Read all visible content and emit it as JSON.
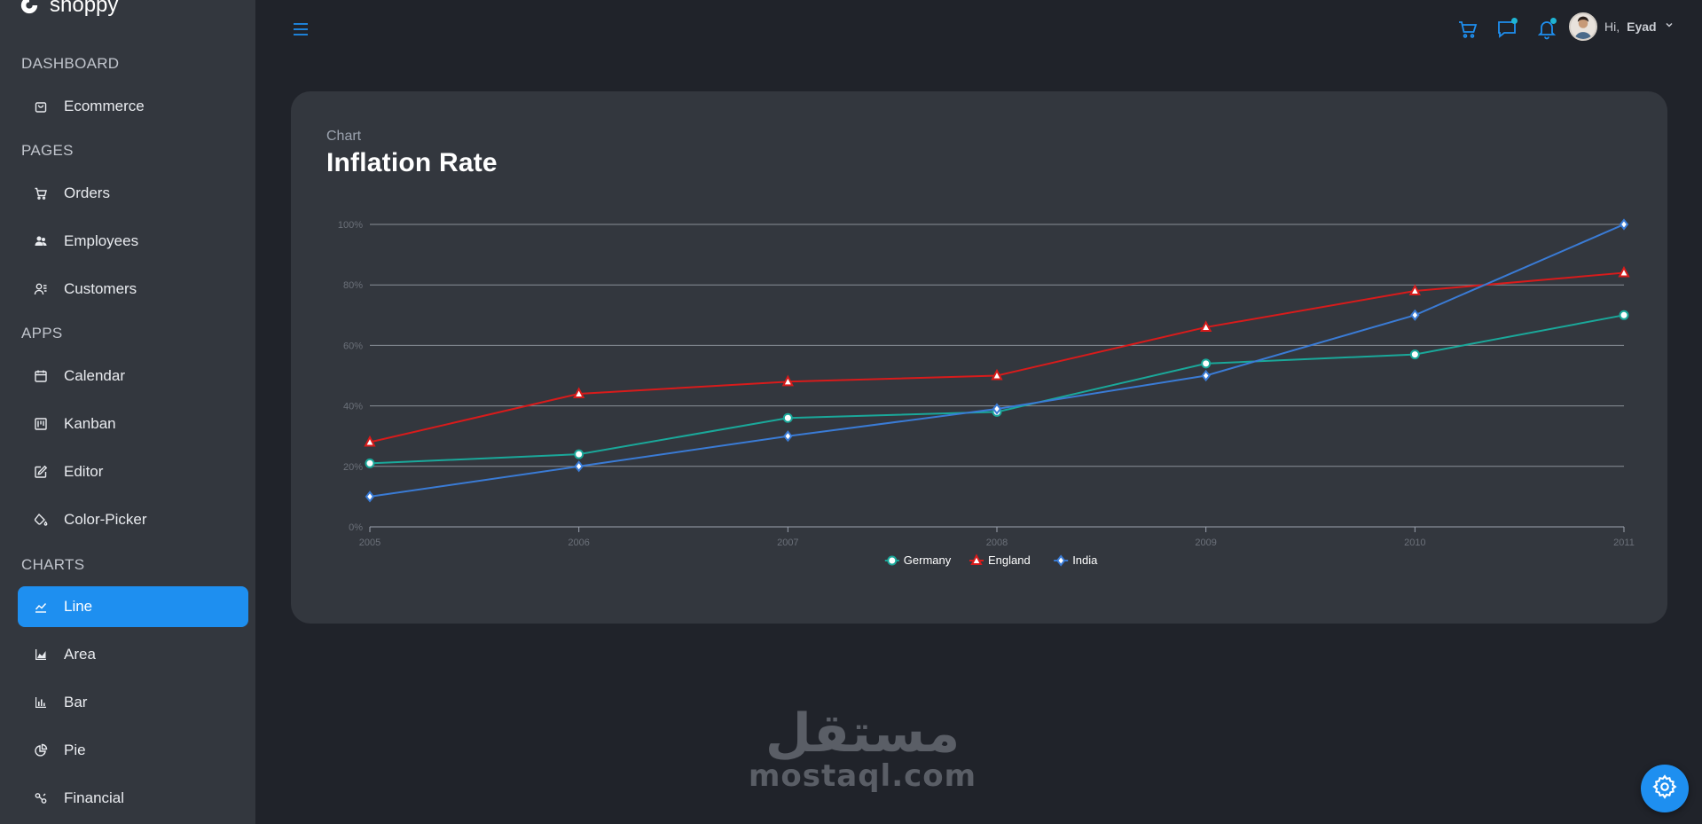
{
  "app": {
    "name": "shoppy"
  },
  "sidebar": {
    "sections": [
      {
        "title": "DASHBOARD",
        "items": [
          {
            "label": "Ecommerce",
            "icon": "shopping-bag-icon"
          }
        ]
      },
      {
        "title": "PAGES",
        "items": [
          {
            "label": "Orders",
            "icon": "cart-icon"
          },
          {
            "label": "Employees",
            "icon": "employees-icon"
          },
          {
            "label": "Customers",
            "icon": "customers-icon"
          }
        ]
      },
      {
        "title": "APPS",
        "items": [
          {
            "label": "Calendar",
            "icon": "calendar-icon"
          },
          {
            "label": "Kanban",
            "icon": "kanban-icon"
          },
          {
            "label": "Editor",
            "icon": "edit-icon"
          },
          {
            "label": "Color-Picker",
            "icon": "paint-bucket-icon"
          }
        ]
      },
      {
        "title": "CHARTS",
        "items": [
          {
            "label": "Line",
            "icon": "line-chart-icon",
            "active": true
          },
          {
            "label": "Area",
            "icon": "area-chart-icon"
          },
          {
            "label": "Bar",
            "icon": "bar-chart-icon"
          },
          {
            "label": "Pie",
            "icon": "pie-chart-icon"
          },
          {
            "label": "Financial",
            "icon": "financial-icon"
          }
        ]
      }
    ]
  },
  "topbar": {
    "menu_icon": "hamburger-menu-icon",
    "icons": [
      "cart-icon",
      "chat-icon",
      "notification-bell-icon"
    ],
    "greeting": "Hi,",
    "user_name": "Eyad",
    "accent": "#1e8ff0"
  },
  "card": {
    "subtitle": "Chart",
    "title": "Inflation Rate"
  },
  "chart_data": {
    "type": "line",
    "x": [
      2005,
      2006,
      2007,
      2008,
      2009,
      2010,
      2011
    ],
    "ylim": [
      0,
      100
    ],
    "y_ticks": [
      "0%",
      "20%",
      "40%",
      "60%",
      "80%",
      "100%"
    ],
    "x_ticks": [
      "2005",
      "2006",
      "2007",
      "2008",
      "2009",
      "2010",
      "2011"
    ],
    "grid": true,
    "legend": "bottom-center",
    "series": [
      {
        "name": "Germany",
        "values": [
          21,
          24,
          36,
          38,
          54,
          57,
          70
        ],
        "color": "#1aa89a",
        "marker": "circle"
      },
      {
        "name": "England",
        "values": [
          28,
          44,
          48,
          50,
          66,
          78,
          84
        ],
        "color": "#d81b1b",
        "marker": "triangle"
      },
      {
        "name": "India",
        "values": [
          10,
          20,
          30,
          39,
          50,
          70,
          100
        ],
        "color": "#3a7bd5",
        "marker": "diamond"
      }
    ]
  },
  "watermark": {
    "arabic": "مستقل",
    "latin": "mostaql.com"
  },
  "settings_icon": "gear-icon"
}
